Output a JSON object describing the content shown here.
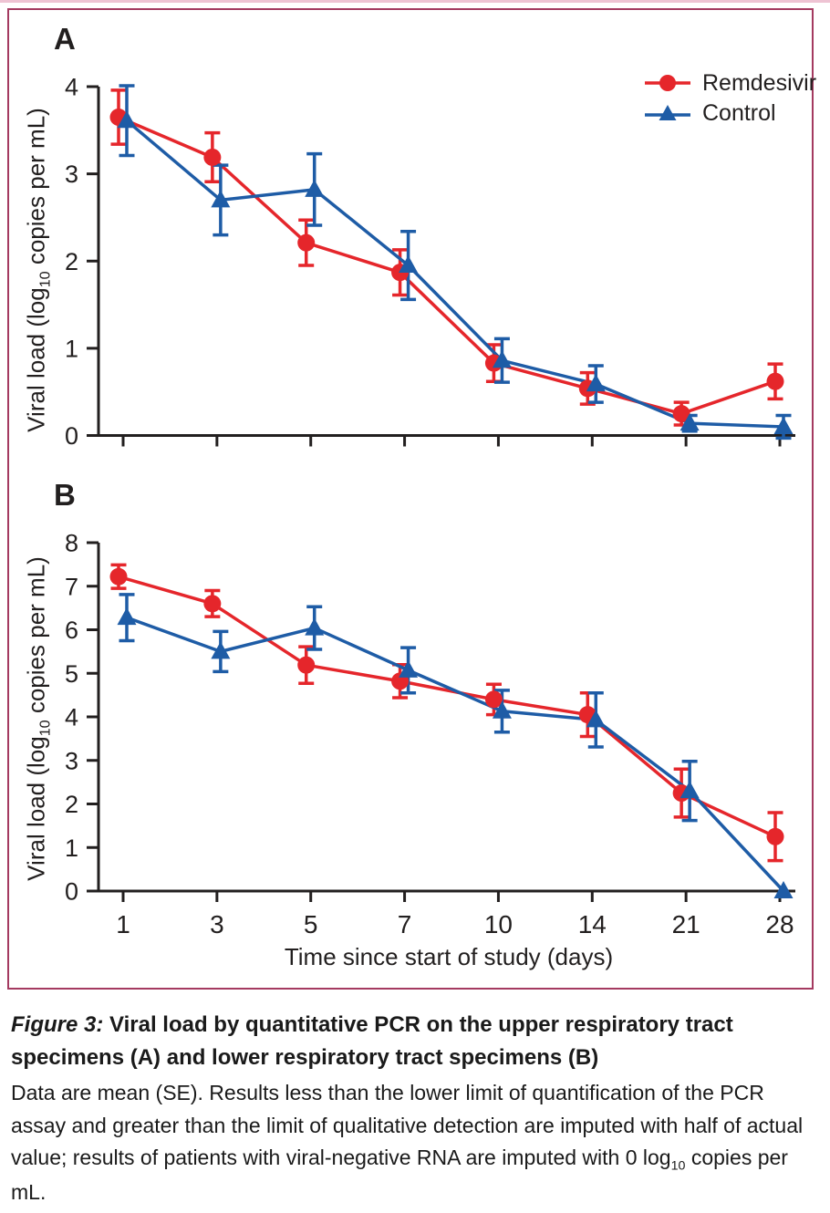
{
  "page": {
    "top_strip_color": "#eec3d3",
    "box_border_color": "#a43a60",
    "axis_color": "#221f1f"
  },
  "chart_data": [
    {
      "type": "line",
      "panel_label": "A",
      "categories": [
        1,
        3,
        5,
        7,
        10,
        14,
        21,
        28
      ],
      "x_tick_labels_visible": false,
      "ylim": [
        0,
        4
      ],
      "yticks": [
        0,
        1,
        2,
        3,
        4
      ],
      "ylabel": "Viral load (log10 copies per mL)",
      "ylabel_parts": [
        "Viral load (log",
        "10",
        " copies per mL)"
      ],
      "legend_position": "top-right",
      "grid": "off",
      "series": [
        {
          "name": "Remdesivir",
          "color": "#e5262b",
          "marker": "circle",
          "mean": [
            3.65,
            3.19,
            2.21,
            1.87,
            0.83,
            0.54,
            0.25,
            0.62
          ],
          "se": [
            0.31,
            0.28,
            0.26,
            0.26,
            0.21,
            0.18,
            0.13,
            0.2
          ]
        },
        {
          "name": "Control",
          "color": "#1e5ca6",
          "marker": "triangle",
          "mean": [
            3.61,
            2.7,
            2.82,
            1.95,
            0.86,
            0.59,
            0.14,
            0.1
          ],
          "se": [
            0.4,
            0.4,
            0.41,
            0.39,
            0.25,
            0.21,
            0.09,
            0.13
          ]
        }
      ]
    },
    {
      "type": "line",
      "panel_label": "B",
      "categories": [
        1,
        3,
        5,
        7,
        10,
        14,
        21,
        28
      ],
      "x_tick_labels_visible": true,
      "xlabel": "Time since start of study (days)",
      "ylim": [
        0,
        8
      ],
      "yticks": [
        0,
        1,
        2,
        3,
        4,
        5,
        6,
        7,
        8
      ],
      "ylabel": "Viral load (log10 copies per mL)",
      "ylabel_parts": [
        "Viral load (log",
        "10",
        " copies per mL)"
      ],
      "grid": "off",
      "series": [
        {
          "name": "Remdesivir",
          "color": "#e5262b",
          "marker": "circle",
          "mean": [
            7.22,
            6.6,
            5.19,
            4.82,
            4.4,
            4.05,
            2.25,
            1.25
          ],
          "se": [
            0.27,
            0.3,
            0.42,
            0.38,
            0.35,
            0.5,
            0.55,
            0.55
          ]
        },
        {
          "name": "Control",
          "color": "#1e5ca6",
          "marker": "triangle",
          "mean": [
            6.28,
            5.5,
            6.04,
            5.07,
            4.13,
            3.93,
            2.3,
            0.0
          ],
          "se": [
            0.53,
            0.46,
            0.49,
            0.52,
            0.48,
            0.62,
            0.68,
            0
          ]
        }
      ]
    }
  ],
  "caption": {
    "figure_label": "Figure 3:",
    "title": " Viral load by quantitative PCR on the upper respiratory tract specimens (A) and lower respiratory tract specimens (B)",
    "body_before_sub": "Data are mean (SE). Results less than the lower limit of quantification of the PCR assay and greater than the limit of qualitative detection are imputed with half of actual value; results of patients with viral-negative RNA are imputed with 0 log",
    "sub": "10",
    "body_after_sub": " copies per mL."
  }
}
